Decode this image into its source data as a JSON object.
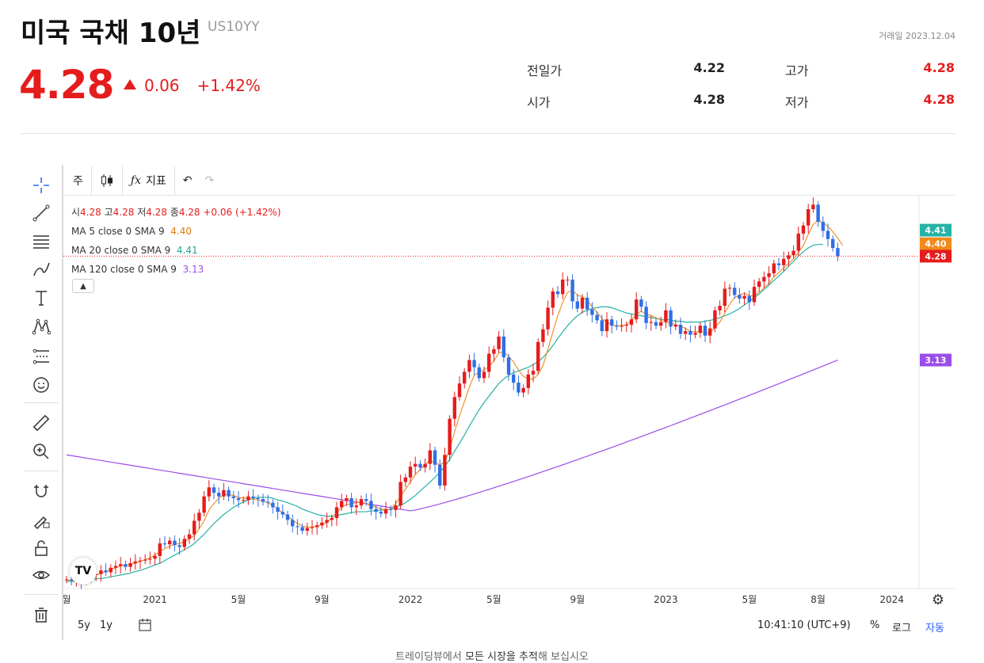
{
  "header": {
    "title": "미국 국채 10년",
    "ticker": "US10YY",
    "trade_date": "거래일 2023.12.04",
    "price": "4.28",
    "change_abs": "0.06",
    "change_pct": "+1.42%"
  },
  "stats": {
    "prev_close_label": "전일가",
    "prev_close": "4.22",
    "high_label": "고가",
    "high": "4.28",
    "open_label": "시가",
    "open": "4.28",
    "low_label": "저가",
    "low": "4.28"
  },
  "toolbar": {
    "interval": "주",
    "indicator_label": "지표"
  },
  "legend": {
    "ohlc_o_label": "시",
    "ohlc_o": "4.28",
    "ohlc_h_label": "고",
    "ohlc_h": "4.28",
    "ohlc_l_label": "저",
    "ohlc_l": "4.28",
    "ohlc_c_label": "종",
    "ohlc_c": "4.28",
    "ohlc_change": "+0.06 (+1.42%)",
    "ma5_label": "MA 5 close 0 SMA 9",
    "ma5_value": "4.40",
    "ma20_label": "MA 20 close 0 SMA 9",
    "ma20_value": "4.41",
    "ma120_label": "MA 120 close 0 SMA 9",
    "ma120_value": "3.13"
  },
  "bottom": {
    "range_5y": "5y",
    "range_1y": "1y",
    "time": "10:41:10 (UTC+9)",
    "pct": "%",
    "log": "로그",
    "auto": "자동"
  },
  "footer": {
    "text_prefix": "트레이딩뷰에서 ",
    "text_link": "모든 시장을 추적",
    "text_suffix": "해 보십시오"
  },
  "colors": {
    "up": "#e51c1c",
    "down": "#2f6fe6",
    "ma5": "#f08a1c",
    "ma20": "#26b2a6",
    "ma120": "#9b4de8"
  },
  "chart_data": {
    "type": "candlestick",
    "title": "미국 국채 10년 (US10YY) 주봉",
    "ylim": [
      0.6,
      4.95
    ],
    "x_tick_labels": [
      "월",
      "2021",
      "5월",
      "9월",
      "2022",
      "5월",
      "9월",
      "2023",
      "5월",
      "8월",
      "2024"
    ],
    "x_tick_index": [
      0,
      18,
      35,
      52,
      70,
      87,
      104,
      122,
      139,
      153,
      168
    ],
    "last_price_labels": [
      {
        "name": "MA 20",
        "value": 4.41
      },
      {
        "name": "MA 5",
        "value": 4.4
      },
      {
        "name": "Price",
        "value": 4.28
      },
      {
        "name": "MA 120",
        "value": 3.13
      }
    ],
    "close": [
      0.7,
      0.69,
      0.7,
      0.68,
      0.72,
      0.75,
      0.76,
      0.8,
      0.78,
      0.83,
      0.85,
      0.87,
      0.84,
      0.88,
      0.9,
      0.91,
      0.92,
      0.93,
      0.96,
      1.1,
      1.09,
      1.13,
      1.08,
      1.06,
      1.15,
      1.2,
      1.35,
      1.44,
      1.62,
      1.72,
      1.66,
      1.62,
      1.69,
      1.62,
      1.6,
      1.58,
      1.58,
      1.62,
      1.6,
      1.59,
      1.56,
      1.55,
      1.5,
      1.45,
      1.42,
      1.36,
      1.29,
      1.28,
      1.24,
      1.27,
      1.28,
      1.3,
      1.33,
      1.36,
      1.38,
      1.5,
      1.57,
      1.6,
      1.5,
      1.52,
      1.59,
      1.57,
      1.48,
      1.45,
      1.43,
      1.48,
      1.47,
      1.52,
      1.78,
      1.83,
      1.95,
      1.98,
      1.94,
      1.98,
      2.13,
      1.97,
      1.74,
      2.08,
      2.48,
      2.72,
      2.87,
      3.0,
      3.13,
      3.05,
      2.93,
      3.0,
      3.2,
      3.25,
      3.39,
      3.16,
      2.97,
      2.88,
      2.77,
      2.82,
      2.97,
      3.01,
      3.33,
      3.47,
      3.71,
      3.89,
      3.86,
      4.02,
      4.02,
      3.78,
      3.7,
      3.82,
      3.69,
      3.63,
      3.57,
      3.45,
      3.58,
      3.51,
      3.5,
      3.51,
      3.52,
      3.58,
      3.8,
      3.72,
      3.54,
      3.55,
      3.51,
      3.55,
      3.68,
      3.5,
      3.52,
      3.42,
      3.45,
      3.41,
      3.43,
      3.51,
      3.4,
      3.48,
      3.68,
      3.73,
      3.92,
      3.93,
      3.85,
      3.81,
      3.84,
      3.77,
      3.94,
      4.0,
      4.05,
      4.09,
      4.2,
      4.18,
      4.25,
      4.29,
      4.34,
      4.53,
      4.62,
      4.8,
      4.85,
      4.66,
      4.56,
      4.47,
      4.37,
      4.28
    ],
    "ma5": [
      0.7,
      0.69,
      0.69,
      0.7,
      0.71,
      0.73,
      0.75,
      0.77,
      0.79,
      0.81,
      0.83,
      0.85,
      0.86,
      0.87,
      0.88,
      0.9,
      0.92,
      0.94,
      0.97,
      1.01,
      1.04,
      1.07,
      1.09,
      1.1,
      1.12,
      1.15,
      1.19,
      1.26,
      1.35,
      1.47,
      1.54,
      1.6,
      1.64,
      1.64,
      1.63,
      1.61,
      1.6,
      1.6,
      1.59,
      1.58,
      1.57,
      1.55,
      1.52,
      1.48,
      1.44,
      1.4,
      1.36,
      1.32,
      1.29,
      1.28,
      1.28,
      1.29,
      1.31,
      1.33,
      1.38,
      1.44,
      1.5,
      1.53,
      1.54,
      1.55,
      1.56,
      1.54,
      1.52,
      1.5,
      1.48,
      1.47,
      1.48,
      1.54,
      1.62,
      1.7,
      1.78,
      1.86,
      1.92,
      1.97,
      2.02,
      1.99,
      1.97,
      2.0,
      2.14,
      2.34,
      2.51,
      2.67,
      2.83,
      2.96,
      3.0,
      3.02,
      3.06,
      3.12,
      3.21,
      3.22,
      3.17,
      3.11,
      3.02,
      2.95,
      2.92,
      2.92,
      2.97,
      3.07,
      3.25,
      3.44,
      3.62,
      3.77,
      3.88,
      3.9,
      3.85,
      3.83,
      3.79,
      3.72,
      3.66,
      3.59,
      3.55,
      3.52,
      3.51,
      3.51,
      3.52,
      3.57,
      3.64,
      3.67,
      3.64,
      3.62,
      3.6,
      3.57,
      3.55,
      3.54,
      3.52,
      3.51,
      3.48,
      3.45,
      3.44,
      3.45,
      3.43,
      3.43,
      3.49,
      3.55,
      3.65,
      3.75,
      3.82,
      3.85,
      3.87,
      3.84,
      3.84,
      3.88,
      3.93,
      3.98,
      4.05,
      4.1,
      4.15,
      4.2,
      4.25,
      4.32,
      4.4,
      4.52,
      4.63,
      4.68,
      4.65,
      4.61,
      4.55,
      4.48,
      4.4
    ],
    "ma20": [
      0.68,
      0.68,
      0.68,
      0.69,
      0.69,
      0.7,
      0.71,
      0.71,
      0.72,
      0.73,
      0.74,
      0.75,
      0.76,
      0.77,
      0.79,
      0.8,
      0.82,
      0.84,
      0.86,
      0.88,
      0.91,
      0.94,
      0.97,
      1.0,
      1.03,
      1.06,
      1.1,
      1.15,
      1.2,
      1.26,
      1.32,
      1.37,
      1.42,
      1.46,
      1.5,
      1.53,
      1.56,
      1.58,
      1.6,
      1.61,
      1.61,
      1.61,
      1.6,
      1.58,
      1.57,
      1.55,
      1.53,
      1.51,
      1.48,
      1.46,
      1.44,
      1.42,
      1.41,
      1.4,
      1.4,
      1.41,
      1.42,
      1.43,
      1.44,
      1.45,
      1.45,
      1.45,
      1.46,
      1.46,
      1.47,
      1.47,
      1.48,
      1.5,
      1.52,
      1.55,
      1.59,
      1.63,
      1.68,
      1.73,
      1.78,
      1.83,
      1.89,
      1.95,
      2.03,
      2.12,
      2.21,
      2.3,
      2.4,
      2.49,
      2.58,
      2.66,
      2.73,
      2.8,
      2.87,
      2.92,
      2.96,
      2.99,
      3.01,
      3.03,
      3.05,
      3.08,
      3.11,
      3.16,
      3.22,
      3.29,
      3.37,
      3.44,
      3.51,
      3.57,
      3.62,
      3.66,
      3.68,
      3.7,
      3.71,
      3.72,
      3.72,
      3.71,
      3.69,
      3.67,
      3.65,
      3.64,
      3.63,
      3.62,
      3.61,
      3.6,
      3.59,
      3.58,
      3.58,
      3.57,
      3.56,
      3.56,
      3.55,
      3.55,
      3.55,
      3.55,
      3.56,
      3.57,
      3.58,
      3.6,
      3.62,
      3.64,
      3.67,
      3.7,
      3.74,
      3.78,
      3.82,
      3.86,
      3.91,
      3.96,
      4.01,
      4.06,
      4.11,
      4.17,
      4.22,
      4.28,
      4.33,
      4.37,
      4.4,
      4.41,
      4.41
    ]
  }
}
